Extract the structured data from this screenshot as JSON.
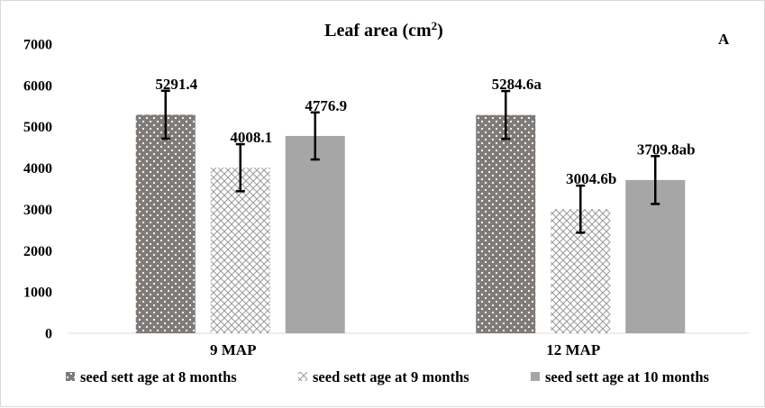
{
  "chart_data": {
    "type": "bar",
    "title": "Leaf area  (cm",
    "title_superscript": "2",
    "title_suffix": ")",
    "panel_label": "A",
    "categories": [
      "9 MAP",
      "12 MAP"
    ],
    "ylim": [
      0,
      7000
    ],
    "y_ticks": [
      "0",
      "1000",
      "2000",
      "3000",
      "4000",
      "5000",
      "6000",
      "7000"
    ],
    "grid": false,
    "legend_position": "bottom",
    "series": [
      {
        "name": "seed sett age at 8 months",
        "pattern": "dots",
        "color": "#7f7b78",
        "values": [
          5291.4,
          5284.6
        ],
        "errors": [
          580,
          580
        ],
        "labels": [
          "5291.4",
          "5284.6a"
        ]
      },
      {
        "name": "seed sett age at 9 months",
        "pattern": "crosshatch",
        "color": "#a6a6a6",
        "values": [
          4008.1,
          3004.6
        ],
        "errors": [
          570,
          570
        ],
        "labels": [
          "4008.1",
          "3004.6b"
        ]
      },
      {
        "name": "seed sett age at 10 months",
        "pattern": "solid",
        "color": "#a6a6a6",
        "values": [
          4776.9,
          3709.8
        ],
        "errors": [
          570,
          580
        ],
        "labels": [
          "4776.9",
          "3709.8ab"
        ]
      }
    ]
  }
}
